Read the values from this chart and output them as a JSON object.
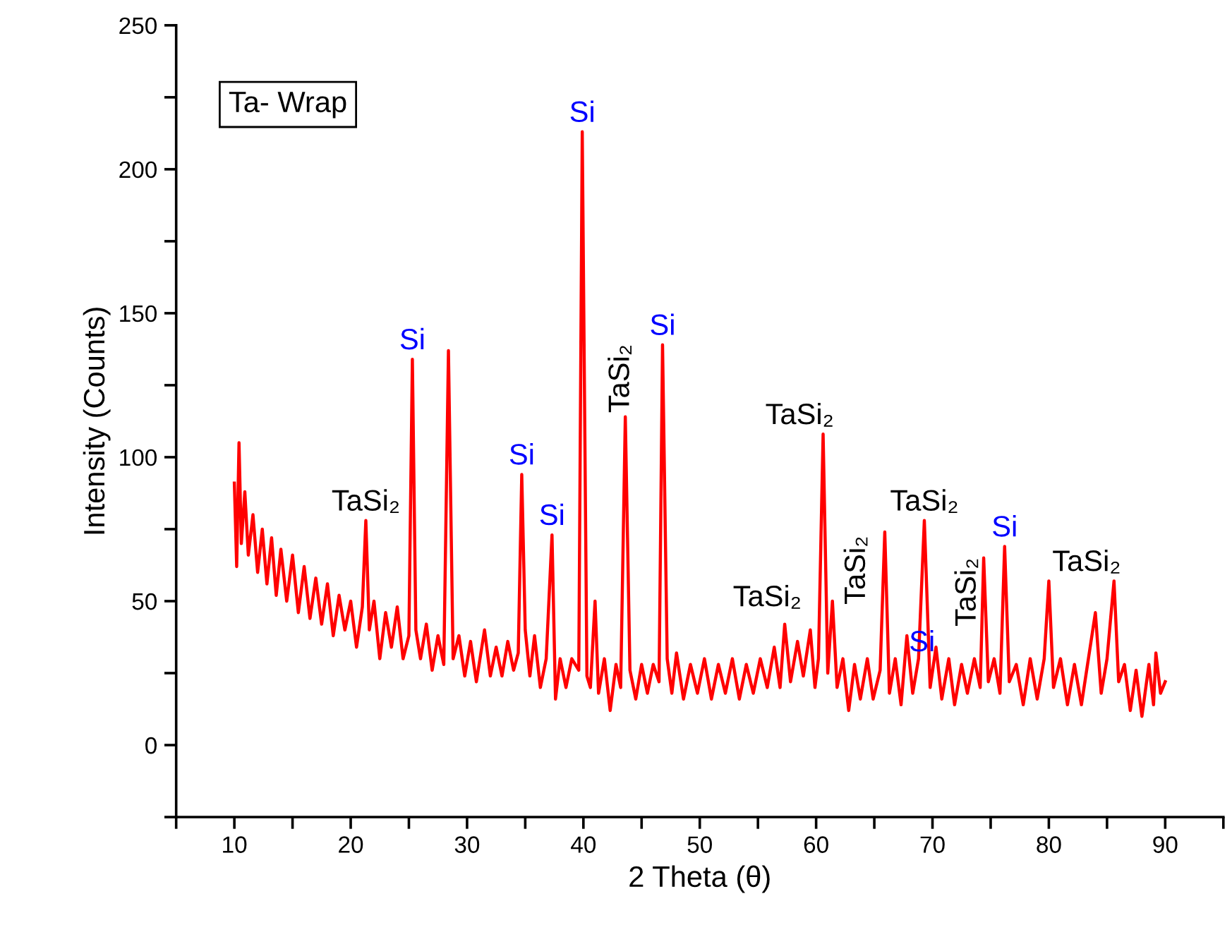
{
  "chart_data": {
    "type": "line",
    "xlabel": "2 Theta (θ)",
    "ylabel": "Intensity (Counts)",
    "xlim": [
      5,
      95
    ],
    "ylim": [
      -25,
      250
    ],
    "xticks": [
      {
        "value": 5,
        "label": null
      },
      10,
      {
        "value": 15,
        "label": null
      },
      20,
      {
        "value": 25,
        "label": null
      },
      30,
      {
        "value": 35,
        "label": null
      },
      40,
      {
        "value": 45,
        "label": null
      },
      50,
      {
        "value": 55,
        "label": null
      },
      60,
      {
        "value": 65,
        "label": null
      },
      70,
      {
        "value": 75,
        "label": null
      },
      80,
      {
        "value": 85,
        "label": null
      },
      90,
      {
        "value": 95,
        "label": null
      }
    ],
    "yticks": [
      {
        "value": -25,
        "label": null
      },
      0,
      {
        "value": 25,
        "label": null
      },
      50,
      {
        "value": 75,
        "label": null
      },
      100,
      {
        "value": 125,
        "label": null
      },
      150,
      {
        "value": 175,
        "label": null
      },
      200,
      {
        "value": 225,
        "label": null
      },
      250
    ],
    "grid": false,
    "legend": false,
    "marker": "none",
    "line_style": "solid",
    "series": [
      {
        "color": "#ff0000",
        "x": [
          10,
          10.2,
          10.4,
          10.6,
          10.9,
          11.2,
          11.6,
          12,
          12.4,
          12.8,
          13.2,
          13.6,
          14,
          14.5,
          15,
          15.5,
          16,
          16.5,
          17,
          17.5,
          18,
          18.5,
          19,
          19.5,
          20,
          20.5,
          21,
          21.3,
          21.6,
          22,
          22.5,
          23,
          23.5,
          24,
          24.5,
          25,
          25.3,
          25.6,
          26,
          26.5,
          27,
          27.5,
          28,
          28.4,
          28.8,
          29.3,
          29.8,
          30.3,
          30.8,
          31.5,
          32,
          32.5,
          33,
          33.5,
          34,
          34.4,
          34.7,
          35,
          35.4,
          35.8,
          36.3,
          36.8,
          37.3,
          37.6,
          38,
          38.5,
          39,
          39.6,
          39.9,
          40.3,
          40.6,
          41,
          41.3,
          41.8,
          42.3,
          42.8,
          43.2,
          43.6,
          44,
          44.5,
          45,
          45.5,
          46,
          46.5,
          46.8,
          47.2,
          47.6,
          48,
          48.6,
          49.2,
          49.8,
          50.4,
          51,
          51.6,
          52.2,
          52.8,
          53.4,
          54,
          54.6,
          55.2,
          55.8,
          56.4,
          56.9,
          57.3,
          57.8,
          58.4,
          58.9,
          59.5,
          59.9,
          60.2,
          60.6,
          61,
          61.4,
          61.8,
          62.3,
          62.8,
          63.3,
          63.8,
          64.4,
          64.9,
          65.5,
          65.9,
          66.3,
          66.8,
          67.3,
          67.8,
          68.3,
          68.8,
          69.3,
          69.8,
          70.3,
          70.8,
          71.4,
          71.9,
          72.5,
          73,
          73.6,
          74.1,
          74.4,
          74.8,
          75.3,
          75.8,
          76.2,
          76.6,
          77.2,
          77.8,
          78.4,
          79,
          79.6,
          80,
          80.4,
          81,
          81.6,
          82.2,
          82.8,
          83.4,
          84,
          84.5,
          85,
          85.6,
          86,
          86.5,
          87,
          87.5,
          88,
          88.6,
          89,
          89.2,
          89.6,
          90
        ],
        "values": [
          91,
          62,
          105,
          70,
          88,
          66,
          80,
          60,
          75,
          56,
          72,
          52,
          68,
          50,
          66,
          46,
          62,
          44,
          58,
          42,
          56,
          38,
          52,
          40,
          50,
          34,
          48,
          78,
          40,
          50,
          30,
          46,
          34,
          48,
          30,
          38,
          134,
          40,
          30,
          42,
          26,
          38,
          28,
          137,
          30,
          38,
          24,
          36,
          22,
          40,
          24,
          34,
          24,
          36,
          26,
          32,
          94,
          40,
          24,
          38,
          20,
          30,
          73,
          16,
          30,
          20,
          30,
          26,
          213,
          24,
          20,
          50,
          18,
          30,
          12,
          28,
          20,
          114,
          26,
          16,
          28,
          18,
          28,
          22,
          139,
          30,
          18,
          32,
          16,
          28,
          18,
          30,
          16,
          28,
          18,
          30,
          16,
          28,
          18,
          30,
          20,
          34,
          20,
          42,
          22,
          36,
          24,
          40,
          20,
          30,
          108,
          25,
          50,
          20,
          30,
          12,
          28,
          16,
          30,
          16,
          26,
          74,
          18,
          30,
          14,
          38,
          18,
          30,
          78,
          20,
          34,
          16,
          30,
          14,
          28,
          18,
          30,
          20,
          65,
          22,
          30,
          18,
          69,
          22,
          28,
          14,
          30,
          16,
          30,
          57,
          20,
          30,
          14,
          28,
          14,
          30,
          46,
          18,
          30,
          57,
          22,
          28,
          12,
          26,
          10,
          28,
          14,
          32,
          18,
          22
        ]
      }
    ],
    "annotations": [
      "Ta- Wrap",
      {
        "text": "TaSi₂",
        "x": 21.3,
        "y": 78
      },
      {
        "text": "Si",
        "x": 25.3,
        "y": 134
      },
      {
        "text": "Si",
        "x": 34.7,
        "y": 94
      },
      {
        "text": "Si",
        "x": 37.3,
        "y": 73
      },
      {
        "text": "Si",
        "x": 39.9,
        "y": 213
      },
      {
        "text": "TaSi₂",
        "x": 43.6,
        "y": 114
      },
      {
        "text": "Si",
        "x": 46.8,
        "y": 139
      },
      {
        "text": "TaSi₂",
        "x": 59.5,
        "y": 40
      },
      {
        "text": "TaSi₂",
        "x": 60.6,
        "y": 108
      },
      {
        "text": "TaSi₂",
        "x": 65.9,
        "y": 74
      },
      {
        "text": "Si",
        "x": 69.1,
        "y": 25
      },
      {
        "text": "TaSi₂",
        "x": 69.3,
        "y": 78
      },
      {
        "text": "TaSi₂",
        "x": 74.4,
        "y": 65
      },
      {
        "text": "Si",
        "x": 76.2,
        "y": 69
      },
      {
        "text": "TaSi₂",
        "x": 85.6,
        "y": 57
      }
    ]
  }
}
